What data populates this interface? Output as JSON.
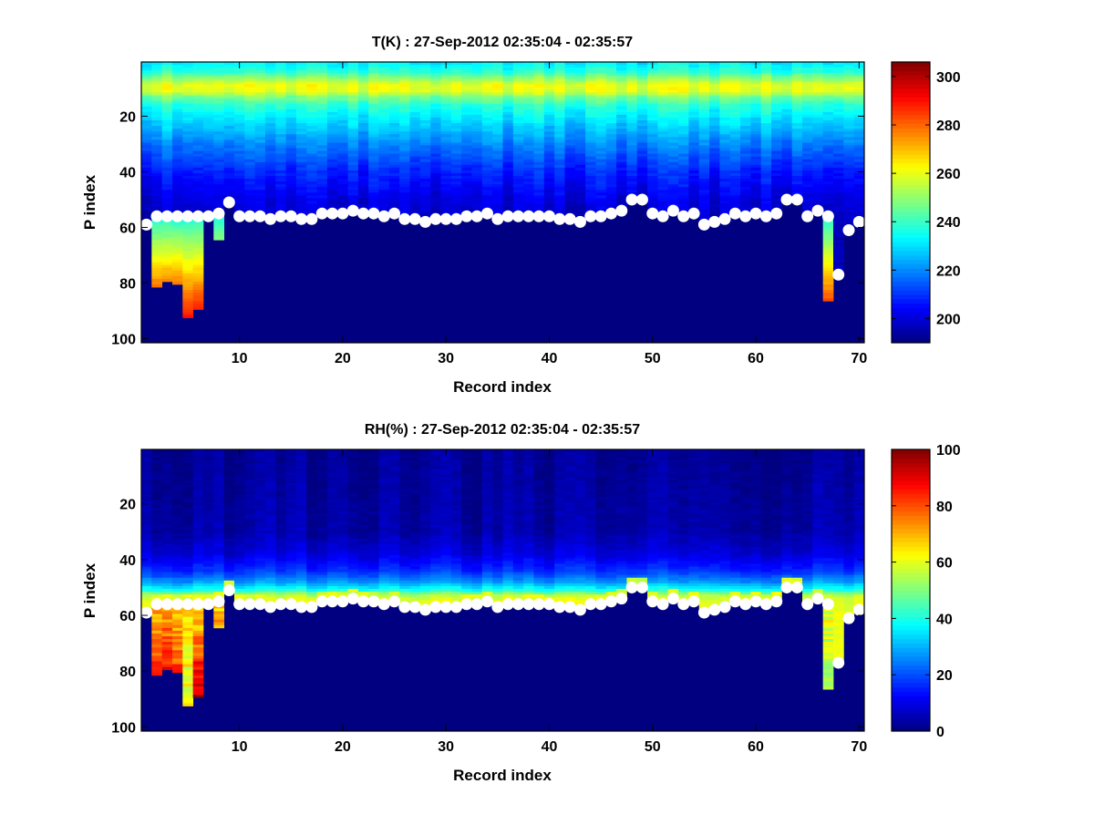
{
  "chart_data": [
    {
      "type": "heatmap",
      "title": "T(K) : 27-Sep-2012 02:35:04 - 02:35:57",
      "xlabel": "Record index",
      "ylabel": "P index",
      "xlim": [
        0.5,
        70.5
      ],
      "ylim": [
        0.5,
        101.5
      ],
      "y_reversed": true,
      "xticks": [
        10,
        20,
        30,
        40,
        50,
        60,
        70
      ],
      "yticks": [
        20,
        40,
        60,
        80,
        100
      ],
      "colormap": "jet",
      "clim": [
        190,
        306
      ],
      "colorbar_ticks": [
        200,
        220,
        240,
        260,
        280,
        300
      ],
      "profile": [
        [
          1,
          232
        ],
        [
          4,
          238
        ],
        [
          7,
          252
        ],
        [
          9,
          260
        ],
        [
          11,
          259
        ],
        [
          13,
          248
        ],
        [
          16,
          238
        ],
        [
          20,
          232
        ],
        [
          30,
          219
        ],
        [
          40,
          208
        ],
        [
          50,
          201
        ],
        [
          58,
          198
        ]
      ],
      "below_surface_value": 190,
      "extensions": [
        {
          "record": 2,
          "bottom": 81,
          "top_value": 236,
          "bottom_value": 278
        },
        {
          "record": 3,
          "bottom": 79,
          "top_value": 236,
          "bottom_value": 276
        },
        {
          "record": 4,
          "bottom": 80,
          "top_value": 236,
          "bottom_value": 277
        },
        {
          "record": 5,
          "bottom": 92,
          "top_value": 236,
          "bottom_value": 290
        },
        {
          "record": 6,
          "bottom": 89,
          "top_value": 236,
          "bottom_value": 288
        },
        {
          "record": 8,
          "bottom": 64,
          "top_value": 236,
          "bottom_value": 248
        },
        {
          "record": 67,
          "bottom": 86,
          "top_value": 236,
          "bottom_value": 282
        },
        {
          "record": 68,
          "bottom": 76,
          "top_value": 236,
          "bottom_value": 268
        }
      ]
    },
    {
      "type": "heatmap",
      "title": "RH(%) : 27-Sep-2012 02:35:04 - 02:35:57",
      "xlabel": "Record index",
      "ylabel": "P index",
      "xlim": [
        0.5,
        70.5
      ],
      "ylim": [
        0.5,
        101.5
      ],
      "y_reversed": true,
      "xticks": [
        10,
        20,
        30,
        40,
        50,
        60,
        70
      ],
      "yticks": [
        20,
        40,
        60,
        80,
        100
      ],
      "colormap": "jet",
      "clim": [
        0,
        100
      ],
      "colorbar_ticks": [
        0,
        20,
        40,
        60,
        80,
        100
      ],
      "profile": [
        [
          1,
          2
        ],
        [
          30,
          4
        ],
        [
          38,
          9
        ],
        [
          44,
          17
        ],
        [
          48,
          27
        ],
        [
          51,
          40
        ],
        [
          53,
          55
        ],
        [
          56,
          60
        ]
      ],
      "below_surface_value": 0,
      "extensions": [
        {
          "record": 2,
          "bottom": 81,
          "top_value": 68,
          "bottom_value": 86
        },
        {
          "record": 3,
          "bottom": 79,
          "top_value": 68,
          "bottom_value": 88
        },
        {
          "record": 4,
          "bottom": 80,
          "top_value": 66,
          "bottom_value": 82
        },
        {
          "record": 5,
          "bottom": 92,
          "top_value": 65,
          "bottom_value": 60
        },
        {
          "record": 6,
          "bottom": 89,
          "top_value": 64,
          "bottom_value": 95
        },
        {
          "record": 8,
          "bottom": 64,
          "top_value": 68,
          "bottom_value": 72
        },
        {
          "record": 67,
          "bottom": 86,
          "top_value": 62,
          "bottom_value": 52
        },
        {
          "record": 68,
          "bottom": 76,
          "top_value": 60,
          "bottom_value": 98
        }
      ]
    }
  ],
  "surface_points": {
    "records": [
      1,
      2,
      3,
      4,
      5,
      6,
      7,
      8,
      9,
      10,
      11,
      12,
      13,
      14,
      15,
      16,
      17,
      18,
      19,
      20,
      21,
      22,
      23,
      24,
      25,
      26,
      27,
      28,
      29,
      30,
      31,
      32,
      33,
      34,
      35,
      36,
      37,
      38,
      39,
      40,
      41,
      42,
      43,
      44,
      45,
      46,
      47,
      48,
      49,
      50,
      51,
      52,
      53,
      54,
      55,
      56,
      57,
      58,
      59,
      60,
      61,
      62,
      63,
      64,
      65,
      66,
      67,
      68,
      69,
      70
    ],
    "p_index": [
      59,
      56,
      56,
      56,
      56,
      56,
      56,
      55,
      51,
      56,
      56,
      56,
      57,
      56,
      56,
      57,
      57,
      55,
      55,
      55,
      54,
      55,
      55,
      56,
      55,
      57,
      57,
      58,
      57,
      57,
      57,
      56,
      56,
      55,
      57,
      56,
      56,
      56,
      56,
      56,
      57,
      57,
      58,
      56,
      56,
      55,
      54,
      50,
      50,
      55,
      56,
      54,
      56,
      55,
      59,
      58,
      57,
      55,
      56,
      55,
      56,
      55,
      50,
      50,
      56,
      54,
      56,
      77,
      61,
      58
    ],
    "color": "#ffffff"
  }
}
